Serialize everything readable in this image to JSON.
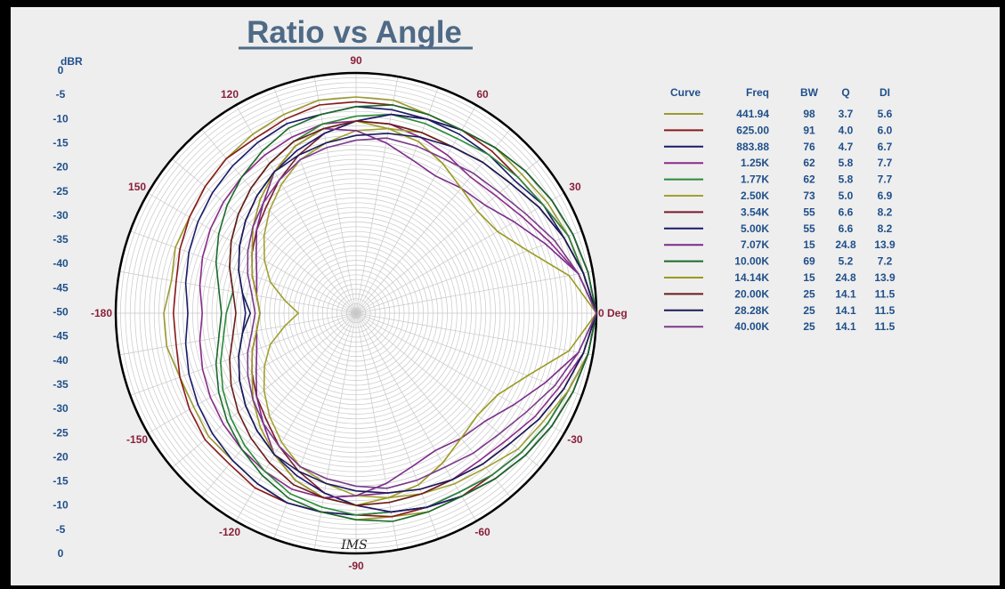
{
  "chart_data": {
    "type": "polar-line",
    "title": "Ratio vs Angle",
    "r_unit_label": "dBR",
    "r_tick_labels_top": [
      "0",
      "-5",
      "-10",
      "-15",
      "-20",
      "-25",
      "-30",
      "-35",
      "-40",
      "-45",
      "-50"
    ],
    "r_tick_labels_bottom": [
      "-45",
      "-40",
      "-35",
      "-30",
      "-25",
      "-20",
      "-15",
      "-10",
      "-5",
      "0"
    ],
    "r_range": [
      -50,
      0
    ],
    "angle_labels": [
      {
        "angle": 0,
        "text": "0 Deg"
      },
      {
        "angle": 30,
        "text": "30"
      },
      {
        "angle": 60,
        "text": "60"
      },
      {
        "angle": 90,
        "text": "90"
      },
      {
        "angle": 120,
        "text": "120"
      },
      {
        "angle": 150,
        "text": "150"
      },
      {
        "angle": 180,
        "text": "-180"
      },
      {
        "angle": -150,
        "text": "-150"
      },
      {
        "angle": -120,
        "text": "-120"
      },
      {
        "angle": -90,
        "text": "-90"
      },
      {
        "angle": -60,
        "text": "-60"
      },
      {
        "angle": -30,
        "text": "-30"
      }
    ],
    "grid": true,
    "table_headers": [
      "Curve",
      "Freq",
      "BW",
      "Q",
      "DI"
    ],
    "series": [
      {
        "freq": "441.94",
        "bw": "98",
        "q": "3.7",
        "di": "5.6",
        "color": "#9a9a30",
        "r": [
          0,
          -2,
          -3,
          -4,
          -5,
          -5,
          -6,
          -6,
          -5,
          -5,
          -5,
          -6,
          -7,
          -8,
          -9,
          -10,
          -10,
          -11,
          -10,
          -10,
          -11,
          -11,
          -10,
          -10,
          -9,
          -8,
          -8,
          -7,
          -7,
          -6,
          -6,
          -5,
          -4,
          -3,
          -2,
          -1
        ]
      },
      {
        "freq": "625.00",
        "bw": "91",
        "q": "4.0",
        "di": "6.0",
        "color": "#8a1a1a",
        "r": [
          0,
          -2,
          -3,
          -5,
          -6,
          -6,
          -6,
          -6,
          -6,
          -6,
          -6,
          -7,
          -8,
          -8,
          -9,
          -10,
          -11,
          -12,
          -12,
          -12,
          -11,
          -10,
          -9,
          -9,
          -8,
          -8,
          -8,
          -8,
          -7,
          -7,
          -6,
          -6,
          -5,
          -4,
          -3,
          -1
        ]
      },
      {
        "freq": "883.88",
        "bw": "76",
        "q": "4.7",
        "di": "6.7",
        "color": "#1a1a6a",
        "r": [
          0,
          -2,
          -4,
          -5,
          -7,
          -7,
          -7,
          -7,
          -7,
          -7,
          -8,
          -8,
          -9,
          -10,
          -11,
          -12,
          -13,
          -14,
          -15,
          -14,
          -13,
          -12,
          -11,
          -10,
          -9,
          -8,
          -8,
          -8,
          -8,
          -7,
          -7,
          -6,
          -5,
          -4,
          -3,
          -1
        ]
      },
      {
        "freq": "1.25K",
        "bw": "62",
        "q": "5.8",
        "di": "7.7",
        "color": "#8a2a8a",
        "r": [
          0,
          -3,
          -7,
          -10,
          -12,
          -13,
          -12,
          -11,
          -10,
          -10,
          -10,
          -11,
          -12,
          -13,
          -14,
          -15,
          -16,
          -17,
          -18,
          -17,
          -16,
          -15,
          -14,
          -13,
          -12,
          -11,
          -11,
          -12,
          -12,
          -11,
          -10,
          -10,
          -9,
          -7,
          -5,
          -2
        ]
      },
      {
        "freq": "1.77K",
        "bw": "62",
        "q": "5.8",
        "di": "7.7",
        "color": "#2a8a3a",
        "r": [
          0,
          -2,
          -3,
          -5,
          -6,
          -7,
          -8,
          -8,
          -8,
          -9,
          -10,
          -12,
          -14,
          -16,
          -18,
          -20,
          -22,
          -24,
          -23,
          -22,
          -20,
          -18,
          -16,
          -14,
          -12,
          -10,
          -9,
          -8,
          -8,
          -7,
          -7,
          -6,
          -5,
          -4,
          -3,
          -1
        ]
      },
      {
        "freq": "2.50K",
        "bw": "73",
        "q": "5.0",
        "di": "6.9",
        "color": "#a0a030",
        "r": [
          0,
          -2,
          -4,
          -6,
          -8,
          -9,
          -10,
          -10,
          -11,
          -12,
          -14,
          -16,
          -19,
          -22,
          -25,
          -28,
          -31,
          -35,
          -38,
          -35,
          -31,
          -28,
          -25,
          -22,
          -19,
          -16,
          -14,
          -12,
          -11,
          -10,
          -9,
          -8,
          -6,
          -5,
          -3,
          -1
        ]
      },
      {
        "freq": "3.54K",
        "bw": "55",
        "q": "6.6",
        "di": "8.2",
        "color": "#7a1a2a",
        "r": [
          0,
          -1,
          -2,
          -3,
          -4,
          -5,
          -6,
          -7,
          -8,
          -10,
          -12,
          -15,
          -18,
          -21,
          -23,
          -25,
          -27,
          -29,
          -30,
          -29,
          -27,
          -25,
          -23,
          -21,
          -18,
          -15,
          -12,
          -10,
          -8,
          -7,
          -6,
          -5,
          -4,
          -3,
          -2,
          -1
        ]
      },
      {
        "freq": "5.00K",
        "bw": "55",
        "q": "6.6",
        "di": "8.2",
        "color": "#1a1a6a",
        "r": [
          0,
          -1,
          -2,
          -3,
          -4,
          -5,
          -6,
          -7,
          -8,
          -10,
          -12,
          -14,
          -16,
          -18,
          -20,
          -22,
          -24,
          -26,
          -27,
          -26,
          -24,
          -22,
          -20,
          -18,
          -16,
          -14,
          -12,
          -10,
          -8,
          -7,
          -6,
          -5,
          -4,
          -3,
          -2,
          -1
        ]
      },
      {
        "freq": "7.07K",
        "bw": "15",
        "q": "24.8",
        "di": "13.9",
        "color": "#7a2a8a",
        "r": [
          0,
          -3,
          -8,
          -12,
          -15,
          -16,
          -17,
          -16,
          -14,
          -12,
          -11,
          -13,
          -16,
          -20,
          -23,
          -26,
          -28,
          -29,
          -30,
          -29,
          -28,
          -26,
          -23,
          -20,
          -16,
          -13,
          -11,
          -12,
          -14,
          -16,
          -17,
          -16,
          -15,
          -12,
          -8,
          -3
        ]
      },
      {
        "freq": "10.00K",
        "bw": "69",
        "q": "5.2",
        "di": "7.2",
        "color": "#1a6a2a",
        "r": [
          0,
          -1,
          -2,
          -3,
          -4,
          -5,
          -6,
          -6,
          -6,
          -7,
          -8,
          -9,
          -11,
          -13,
          -15,
          -17,
          -19,
          -21,
          -22,
          -21,
          -19,
          -17,
          -15,
          -13,
          -11,
          -9,
          -8,
          -7,
          -6,
          -6,
          -6,
          -5,
          -4,
          -3,
          -2,
          -1
        ]
      },
      {
        "freq": "14.14K",
        "bw": "15",
        "q": "24.8",
        "di": "13.9",
        "color": "#9a9a20",
        "r": [
          0,
          -5,
          -12,
          -16,
          -17,
          -16,
          -14,
          -12,
          -11,
          -10,
          -11,
          -13,
          -16,
          -19,
          -22,
          -25,
          -27,
          -29,
          -30,
          -29,
          -27,
          -25,
          -22,
          -19,
          -16,
          -13,
          -11,
          -10,
          -11,
          -12,
          -14,
          -16,
          -17,
          -16,
          -12,
          -5
        ]
      },
      {
        "freq": "20.00K",
        "bw": "25",
        "q": "14.1",
        "di": "11.5",
        "color": "#6a1a1a",
        "r": [
          0,
          -2,
          -4,
          -6,
          -8,
          -9,
          -10,
          -10,
          -10,
          -10,
          -11,
          -12,
          -14,
          -16,
          -18,
          -20,
          -22,
          -24,
          -25,
          -24,
          -22,
          -20,
          -18,
          -16,
          -14,
          -12,
          -11,
          -10,
          -10,
          -10,
          -10,
          -9,
          -8,
          -6,
          -4,
          -2
        ]
      },
      {
        "freq": "28.28K",
        "bw": "25",
        "q": "14.1",
        "di": "11.5",
        "color": "#1a1a5a",
        "r": [
          0,
          -2,
          -4,
          -6,
          -8,
          -9,
          -10,
          -11,
          -12,
          -13,
          -14,
          -15,
          -16,
          -18,
          -20,
          -22,
          -24,
          -26,
          -28,
          -26,
          -24,
          -22,
          -20,
          -18,
          -16,
          -15,
          -14,
          -13,
          -12,
          -11,
          -10,
          -9,
          -8,
          -6,
          -4,
          -2
        ]
      },
      {
        "freq": "40.00K",
        "bw": "25",
        "q": "14.1",
        "di": "11.5",
        "color": "#7a3a8a",
        "r": [
          0,
          -3,
          -6,
          -9,
          -11,
          -12,
          -13,
          -13,
          -13,
          -14,
          -15,
          -16,
          -18,
          -20,
          -22,
          -24,
          -26,
          -28,
          -29,
          -28,
          -26,
          -24,
          -22,
          -20,
          -18,
          -16,
          -15,
          -14,
          -13,
          -13,
          -13,
          -12,
          -11,
          -9,
          -6,
          -3
        ]
      }
    ]
  },
  "footer": {
    "signature": "IMS"
  }
}
